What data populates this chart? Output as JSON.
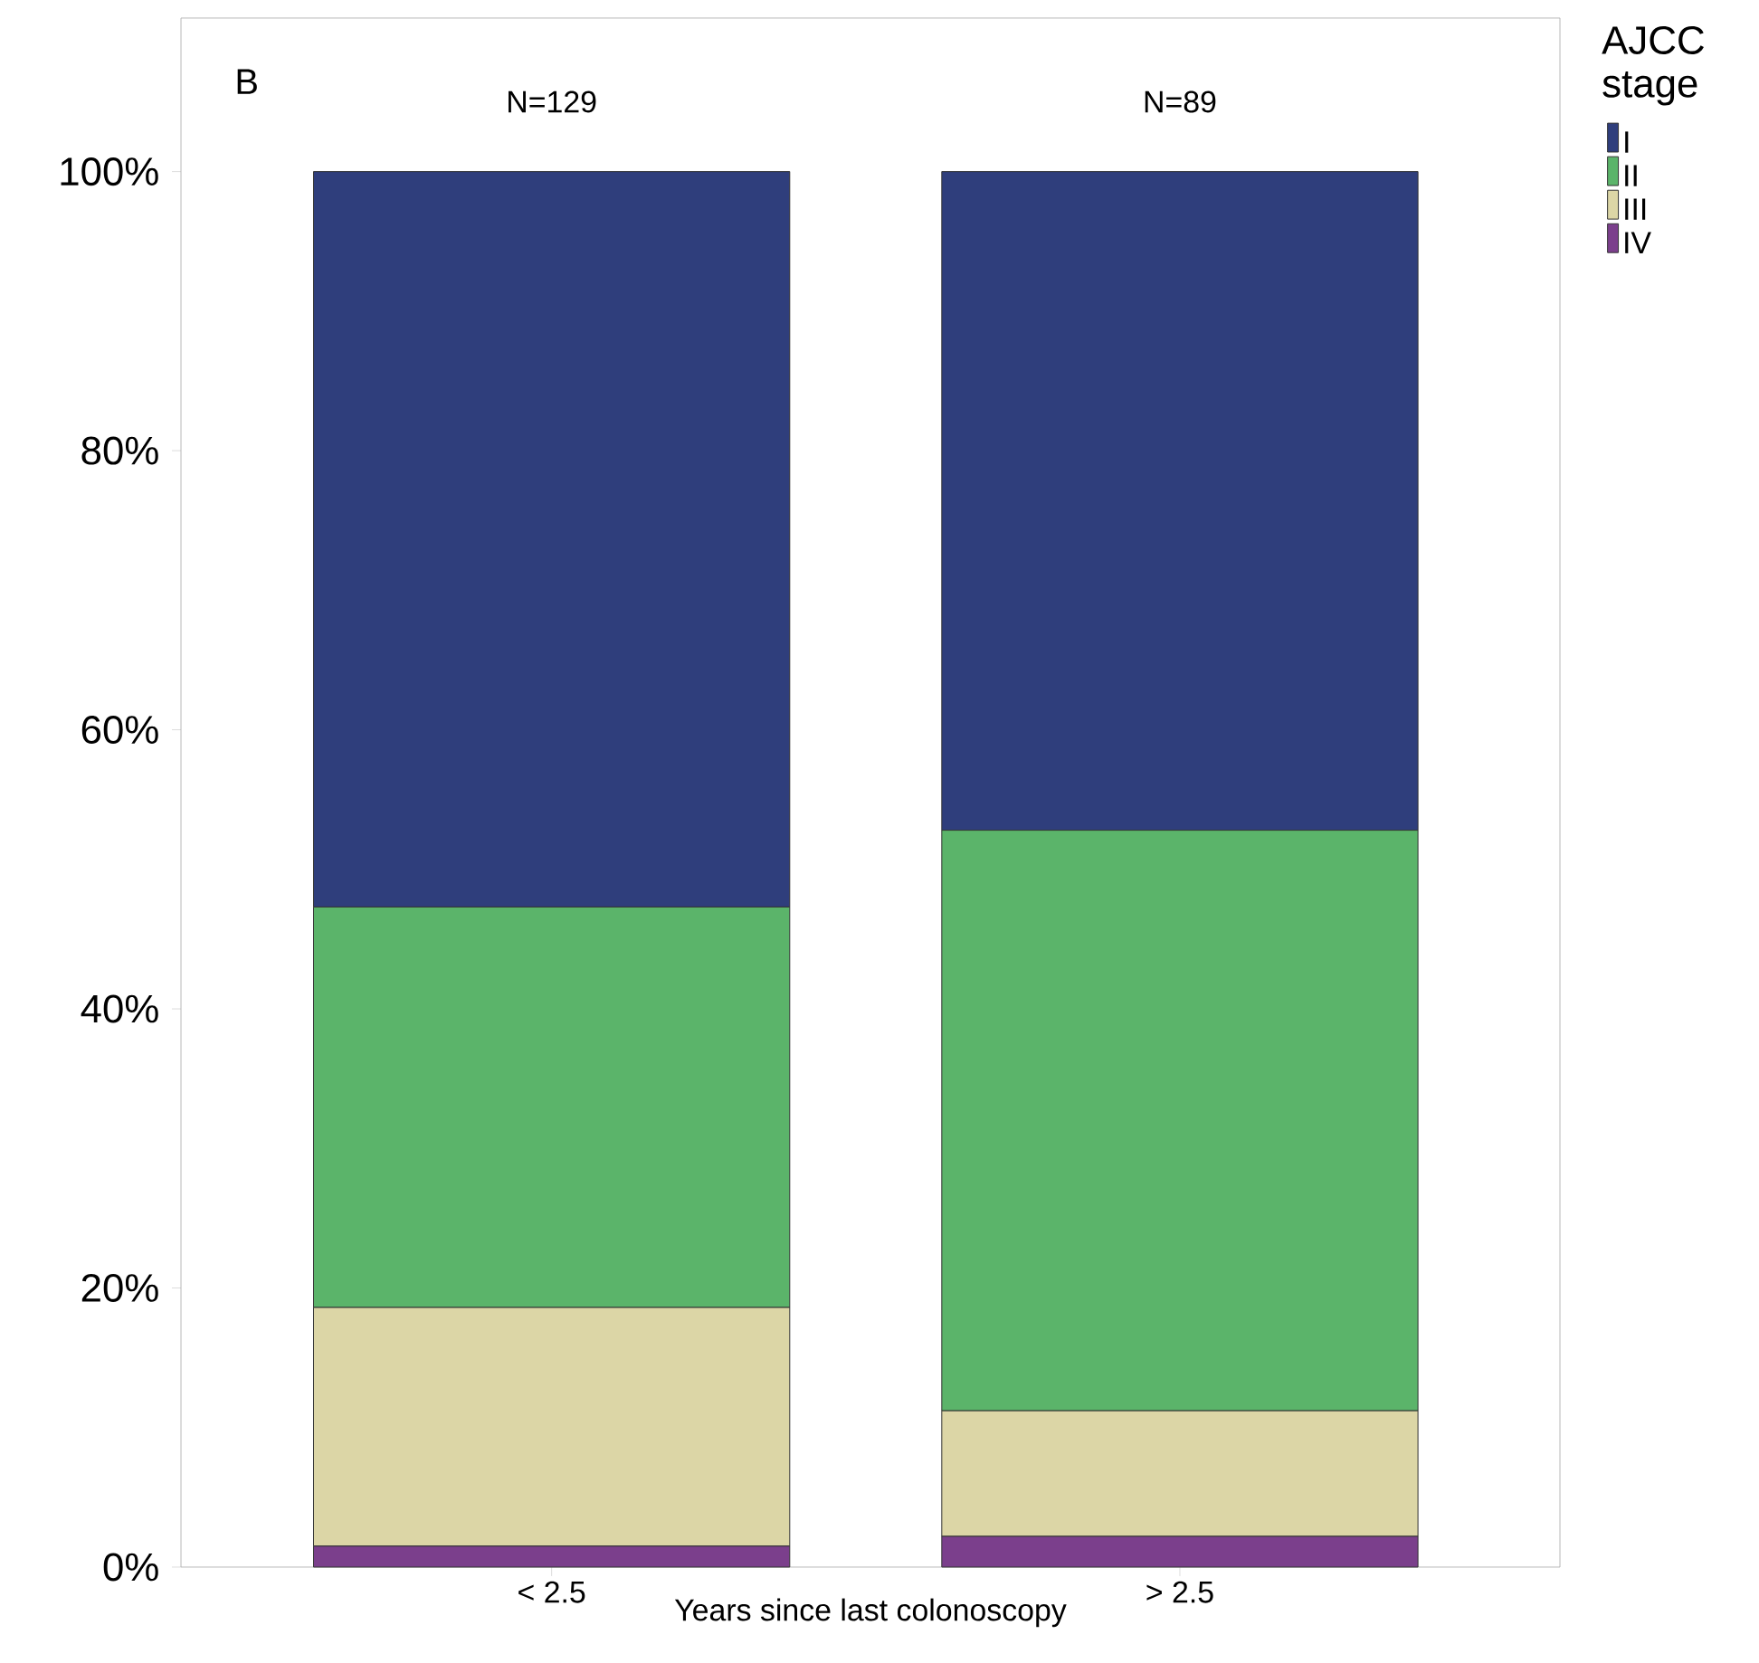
{
  "chart_data": {
    "type": "bar",
    "stacked": true,
    "categories": [
      "< 2.5",
      "> 2.5"
    ],
    "xlabel": "Years since last colonoscopy",
    "legend_title": "AJCC stage",
    "legend": "top right",
    "ylim": [
      0,
      111
    ],
    "yticks": [
      {
        "value": 0,
        "label": "0%"
      },
      {
        "value": 20,
        "label": "20%"
      },
      {
        "value": 40,
        "label": "40%"
      },
      {
        "value": 60,
        "label": "60%"
      },
      {
        "value": 80,
        "label": "80%"
      },
      {
        "value": 100,
        "label": "100%"
      }
    ],
    "series": [
      {
        "name": "IV",
        "color": "#7b3f8c",
        "values": [
          1.5,
          2.2
        ]
      },
      {
        "name": "III",
        "color": "#dcd6a6",
        "values": [
          17.1,
          9.0
        ]
      },
      {
        "name": "II",
        "color": "#5bb46a",
        "values": [
          28.7,
          41.6
        ]
      },
      {
        "name": "I",
        "color": "#2f3e7c",
        "values": [
          52.7,
          47.2
        ]
      }
    ],
    "annotations": [
      "B",
      "N=129",
      "N=89"
    ]
  }
}
